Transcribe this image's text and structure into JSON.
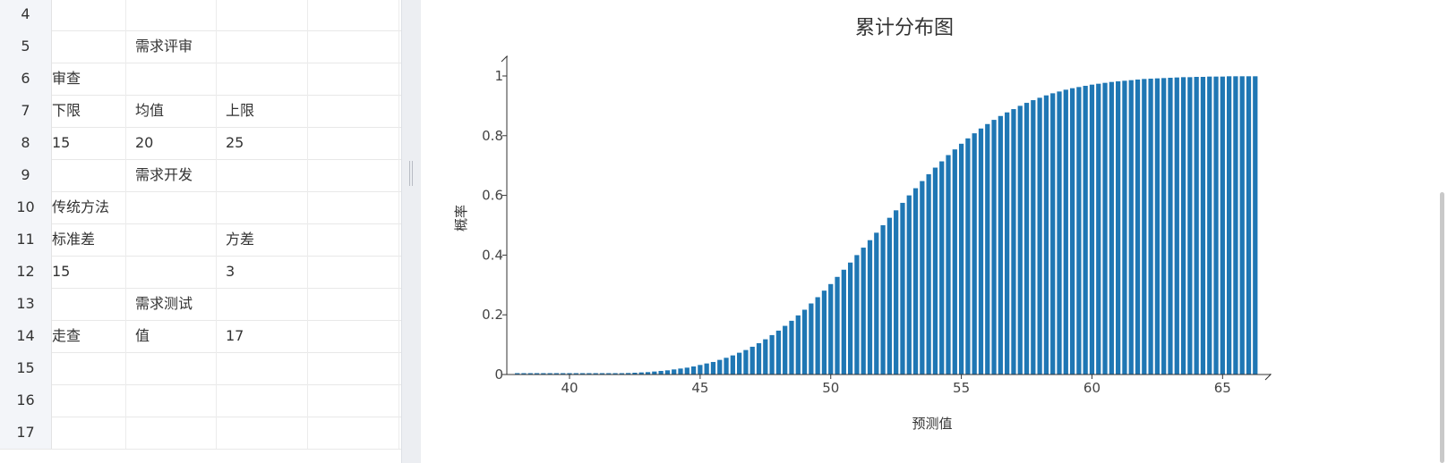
{
  "sheet": {
    "rows": [
      {
        "num": "4",
        "a": "",
        "b": "",
        "c": ""
      },
      {
        "num": "5",
        "a": "",
        "b": "需求评审",
        "c": ""
      },
      {
        "num": "6",
        "a": "审查",
        "b": "",
        "c": ""
      },
      {
        "num": "7",
        "a": "下限",
        "b": "均值",
        "c": "上限"
      },
      {
        "num": "8",
        "a": "15",
        "b": "20",
        "c": "25"
      },
      {
        "num": "9",
        "a": "",
        "b": "需求开发",
        "c": ""
      },
      {
        "num": "10",
        "a": "传统方法",
        "b": "",
        "c": ""
      },
      {
        "num": "11",
        "a": "标准差",
        "b": "",
        "c": "方差"
      },
      {
        "num": "12",
        "a": "15",
        "b": "",
        "c": "3"
      },
      {
        "num": "13",
        "a": "",
        "b": "需求测试",
        "c": ""
      },
      {
        "num": "14",
        "a": "走查",
        "b": "值",
        "c": "17"
      },
      {
        "num": "15",
        "a": "",
        "b": "",
        "c": ""
      },
      {
        "num": "16",
        "a": "",
        "b": "",
        "c": ""
      },
      {
        "num": "17",
        "a": "",
        "b": "",
        "c": ""
      }
    ]
  },
  "chart_data": {
    "type": "bar",
    "title": "累计分布图",
    "xlabel": "预测值",
    "ylabel": "概率",
    "xlim": [
      37.6,
      66.6
    ],
    "ylim": [
      0,
      1
    ],
    "x_ticks": [
      40,
      45,
      50,
      55,
      60,
      65
    ],
    "y_ticks": [
      0,
      0.2,
      0.4,
      0.6,
      0.8,
      1
    ],
    "y_tick_labels": [
      "0",
      "0.2",
      "0.4",
      "0.6",
      "0.8",
      "1"
    ],
    "bar_color": "#1f77b4",
    "grid": false,
    "series": [
      {
        "x": [
          38,
          38.25,
          38.5,
          38.75,
          39,
          39.25,
          39.5,
          39.75,
          40,
          40.25,
          40.5,
          40.75,
          41,
          41.25,
          41.5,
          41.75,
          42,
          42.25,
          42.5,
          42.75,
          43,
          43.25,
          43.5,
          43.75,
          44,
          44.25,
          44.5,
          44.75,
          45,
          45.25,
          45.5,
          45.75,
          46,
          46.25,
          46.5,
          46.75,
          47,
          47.25,
          47.5,
          47.75,
          48,
          48.25,
          48.5,
          48.75,
          49,
          49.25,
          49.5,
          49.75,
          50,
          50.25,
          50.5,
          50.75,
          51,
          51.25,
          51.5,
          51.75,
          52,
          52.25,
          52.5,
          52.75,
          53,
          53.25,
          53.5,
          53.75,
          54,
          54.25,
          54.5,
          54.75,
          55,
          55.25,
          55.5,
          55.75,
          56,
          56.25,
          56.5,
          56.75,
          57,
          57.25,
          57.5,
          57.75,
          58,
          58.25,
          58.5,
          58.75,
          59,
          59.25,
          59.5,
          59.75,
          60,
          60.25,
          60.5,
          60.75,
          61,
          61.25,
          61.5,
          61.75,
          62,
          62.25,
          62.5,
          62.75,
          63,
          63.25,
          63.5,
          63.75,
          64,
          64.25,
          64.5,
          64.75,
          65,
          65.25,
          65.5,
          65.75,
          66,
          66.25
        ],
        "values": [
          0,
          0,
          0,
          0,
          0,
          0,
          0.001,
          0.001,
          0.001,
          0.001,
          0.001,
          0.002,
          0.002,
          0.002,
          0.003,
          0.003,
          0.004,
          0.005,
          0.006,
          0.007,
          0.008,
          0.01,
          0.012,
          0.014,
          0.017,
          0.02,
          0.023,
          0.027,
          0.032,
          0.037,
          0.042,
          0.049,
          0.056,
          0.064,
          0.073,
          0.082,
          0.093,
          0.105,
          0.118,
          0.132,
          0.147,
          0.163,
          0.18,
          0.198,
          0.217,
          0.238,
          0.259,
          0.281,
          0.303,
          0.327,
          0.351,
          0.375,
          0.4,
          0.425,
          0.45,
          0.475,
          0.5,
          0.525,
          0.55,
          0.575,
          0.6,
          0.624,
          0.648,
          0.671,
          0.693,
          0.714,
          0.735,
          0.754,
          0.773,
          0.791,
          0.808,
          0.824,
          0.839,
          0.853,
          0.866,
          0.878,
          0.889,
          0.9,
          0.91,
          0.919,
          0.927,
          0.935,
          0.942,
          0.948,
          0.954,
          0.959,
          0.963,
          0.967,
          0.971,
          0.974,
          0.977,
          0.98,
          0.982,
          0.984,
          0.986,
          0.988,
          0.99,
          0.991,
          0.992,
          0.993,
          0.994,
          0.995,
          0.996,
          0.996,
          0.997,
          0.997,
          0.998,
          0.998,
          0.998,
          0.999,
          0.999,
          0.999,
          0.999,
          0.999
        ]
      }
    ]
  }
}
